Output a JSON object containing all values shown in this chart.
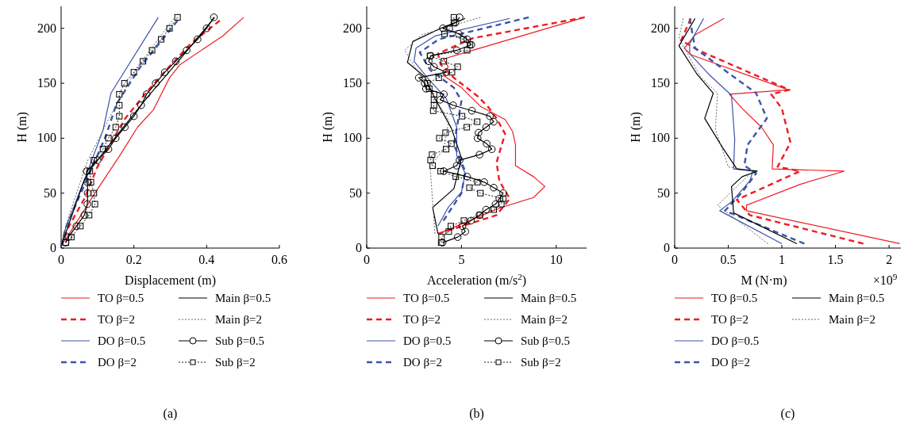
{
  "chart_data": [
    {
      "type": "line",
      "xlabel": "Displacement (m)",
      "ylabel": "H (m)",
      "xlim": [
        0,
        0.6
      ],
      "xticks": [
        0,
        0.2,
        0.4,
        0.6
      ],
      "ylim": [
        0,
        220
      ],
      "yticks": [
        0,
        50,
        100,
        150,
        200
      ],
      "legend": "bottom",
      "annotations": [
        "(a)"
      ],
      "series": [
        {
          "name": "TO β=0.5",
          "color": "#ee1c25",
          "line_style": "solid",
          "marker": "none",
          "x": [
            0,
            0.028,
            0.093,
            0.159,
            0.21,
            0.254,
            0.298,
            0.327,
            0.444,
            0.502
          ],
          "values": [
            2,
            16,
            50,
            83,
            110,
            126,
            155,
            167,
            193,
            210
          ]
        },
        {
          "name": "TO β=2",
          "color": "#ee1c25",
          "line_style": "dashed",
          "marker": "none",
          "x": [
            0,
            0.02,
            0.064,
            0.1,
            0.174,
            0.225,
            0.283,
            0.356,
            0.436
          ],
          "values": [
            2,
            19,
            45,
            74,
            117,
            138,
            160,
            186,
            207
          ]
        },
        {
          "name": "DO β=0.5",
          "color": "#3b55a8",
          "line_style": "solid",
          "marker": "none",
          "x": [
            0,
            0.013,
            0.072,
            0.115,
            0.137,
            0.267
          ],
          "values": [
            2,
            19,
            69,
            107,
            141,
            210
          ]
        },
        {
          "name": "DO β=2",
          "color": "#3b55a8",
          "line_style": "dashed",
          "marker": "none",
          "x": [
            0,
            0.013,
            0.086,
            0.123,
            0.152,
            0.218,
            0.32
          ],
          "values": [
            2,
            19,
            74,
            102,
            131,
            165,
            207
          ]
        },
        {
          "name": "Main β=0.5",
          "color": "#000000",
          "line_style": "solid",
          "marker": "none",
          "x": [
            0,
            0.01,
            0.035,
            0.064,
            0.086,
            0.159,
            0.239,
            0.327,
            0.422
          ],
          "values": [
            2,
            11,
            35,
            62,
            74,
            105,
            138,
            172,
            210
          ]
        },
        {
          "name": "Main β=2",
          "color": "#555555",
          "line_style": "dotted",
          "marker": "none",
          "x": [
            0,
            0.02,
            0.072,
            0.13,
            0.21,
            0.31
          ],
          "values": [
            2,
            28,
            79,
            117,
            165,
            209
          ]
        },
        {
          "name": "Sub β=0.5",
          "color": "#000000",
          "line_style": "solid",
          "marker": "circle",
          "x": [
            0.012,
            0.02,
            0.042,
            0.064,
            0.072,
            0.073,
            0.072,
            0.07,
            0.1,
            0.13,
            0.15,
            0.175,
            0.2,
            0.22,
            0.235,
            0.26,
            0.285,
            0.315,
            0.345,
            0.375,
            0.4,
            0.42
          ],
          "values": [
            5,
            10,
            20,
            30,
            40,
            50,
            60,
            70,
            80,
            90,
            100,
            110,
            120,
            130,
            140,
            150,
            160,
            170,
            180,
            190,
            200,
            210
          ]
        },
        {
          "name": "Sub β=2",
          "color": "#000000",
          "line_style": "dotted",
          "marker": "square",
          "x": [
            0.013,
            0.028,
            0.053,
            0.077,
            0.093,
            0.09,
            0.082,
            0.079,
            0.09,
            0.115,
            0.13,
            0.15,
            0.16,
            0.16,
            0.16,
            0.174,
            0.2,
            0.225,
            0.25,
            0.275,
            0.298,
            0.32
          ],
          "values": [
            5,
            10,
            20,
            30,
            40,
            50,
            60,
            70,
            80,
            90,
            100,
            110,
            120,
            130,
            140,
            150,
            160,
            170,
            180,
            190,
            200,
            210
          ]
        }
      ]
    },
    {
      "type": "line",
      "xlabel": "Acceleration (m/s$^{2}$)",
      "ylabel": "H (m)",
      "xlim": [
        0,
        11.6
      ],
      "xticks": [
        0,
        5,
        10
      ],
      "ylim": [
        0,
        220
      ],
      "yticks": [
        0,
        50,
        100,
        150,
        200
      ],
      "legend": "bottom",
      "annotations": [
        "(b)"
      ],
      "series": [
        {
          "name": "TO β=0.5",
          "color": "#ee1c25",
          "line_style": "solid",
          "marker": "none",
          "x": [
            3.9,
            7.1,
            8.8,
            9.4,
            8.8,
            7.85,
            7.85,
            7.7,
            7.3,
            6.0,
            5.0,
            4.05,
            4.3,
            4.05,
            5.0,
            11.5
          ],
          "values": [
            14,
            37,
            46,
            56,
            65,
            75,
            94,
            106,
            117,
            129,
            146,
            157,
            165,
            172,
            177,
            210
          ]
        },
        {
          "name": "TO β=2",
          "color": "#ee1c25",
          "line_style": "dashed",
          "marker": "none",
          "x": [
            3.76,
            6.85,
            7.55,
            7.0,
            6.85,
            7.3,
            6.85,
            6.43,
            5.87,
            4.6,
            3.9,
            3.76,
            5.6,
            11.5
          ],
          "values": [
            13,
            30,
            45,
            61,
            78,
            104,
            118,
            128,
            138,
            155,
            167,
            177,
            191,
            210
          ]
        },
        {
          "name": "DO β=0.5",
          "color": "#3b55a8",
          "line_style": "solid",
          "marker": "none",
          "x": [
            3.76,
            4.3,
            5.0,
            5.2,
            4.75,
            4.75,
            4.2,
            3.2,
            2.5,
            2.6,
            3.6,
            7.55
          ],
          "values": [
            20,
            37,
            51,
            68,
            84,
            110,
            136,
            155,
            170,
            182,
            193,
            209
          ]
        },
        {
          "name": "DO β=2",
          "color": "#3b55a8",
          "line_style": "dashed",
          "marker": "none",
          "x": [
            4.05,
            5.0,
            5.2,
            4.6,
            5.0,
            4.6,
            3.35,
            2.8,
            3.8,
            8.55
          ],
          "values": [
            25,
            50,
            70,
            94,
            134,
            146,
            162,
            178,
            190,
            210
          ]
        },
        {
          "name": "Main β=0.5",
          "color": "#000000",
          "line_style": "solid",
          "marker": "none",
          "x": [
            3.76,
            3.48,
            4.6,
            5.0,
            4.47,
            3.6,
            3.06,
            2.15,
            2.43,
            3.9,
            5.2
          ],
          "values": [
            13,
            37,
            54,
            82,
            109,
            136,
            156,
            169,
            188,
            200,
            209
          ]
        },
        {
          "name": "Main β=2",
          "color": "#555555",
          "line_style": "dotted",
          "marker": "none",
          "x": [
            3.6,
            3.48,
            3.34,
            4.05,
            4.33,
            3.48,
            2.64,
            2.0,
            2.9,
            6.0
          ],
          "values": [
            13,
            42,
            75,
            89,
            116,
            140,
            162,
            180,
            194,
            210
          ]
        },
        {
          "name": "Sub β=0.5",
          "color": "#000000",
          "line_style": "solid",
          "marker": "circle",
          "x": [
            4.0,
            4.8,
            5.2,
            5.05,
            5.5,
            5.95,
            6.3,
            6.8,
            7.0,
            7.2,
            6.7,
            6.2,
            5.3,
            4.07,
            4.75,
            4.9,
            5.95,
            6.6,
            6.33,
            5.85,
            5.9,
            6.3,
            6.7,
            6.5,
            5.55,
            4.56,
            3.88,
            4.07,
            3.13,
            3.06,
            2.75,
            4.2,
            3.55,
            3.27,
            3.38,
            4.75,
            5.52,
            5.3,
            4.86,
            4.02,
            4.68,
            4.9
          ],
          "values": [
            5,
            10,
            15,
            20,
            25,
            30,
            35,
            40,
            45,
            50,
            55,
            60,
            65,
            70,
            75,
            80,
            85,
            90,
            95,
            100,
            105,
            110,
            115,
            120,
            125,
            130,
            135,
            140,
            145,
            150,
            155,
            160,
            165,
            170,
            175,
            180,
            185,
            190,
            195,
            200,
            205,
            210
          ]
        },
        {
          "name": "Sub β=2",
          "color": "#000000",
          "line_style": "dotted",
          "marker": "square",
          "x": [
            3.93,
            3.95,
            4.33,
            4.44,
            5.13,
            5.97,
            6.7,
            7.1,
            7.2,
            6.0,
            5.42,
            5.84,
            4.7,
            3.9,
            3.48,
            3.37,
            3.45,
            4.19,
            4.47,
            3.83,
            4.16,
            5.28,
            5.83,
            5.03,
            3.51,
            3.55,
            3.55,
            3.55,
            3.3,
            3.2,
            3.8,
            4.5,
            4.8,
            4.07,
            3.34,
            5.3,
            5.45,
            5.1,
            4.1,
            4.38,
            4.6,
            4.6
          ],
          "values": [
            5,
            10,
            15,
            20,
            25,
            30,
            35,
            40,
            45,
            50,
            55,
            60,
            65,
            70,
            75,
            80,
            85,
            90,
            95,
            100,
            105,
            110,
            115,
            120,
            125,
            130,
            135,
            140,
            145,
            150,
            155,
            160,
            165,
            170,
            175,
            180,
            185,
            190,
            195,
            200,
            205,
            210
          ]
        }
      ]
    },
    {
      "type": "line",
      "xlabel": "M (N·m)",
      "ylabel": "H (m)",
      "xlim": [
        0,
        2.11
      ],
      "xticks": [
        0,
        0.5,
        1,
        1.5,
        2
      ],
      "ylim": [
        0,
        220
      ],
      "yticks": [
        0,
        50,
        100,
        150,
        200
      ],
      "legend": "bottom",
      "annotations": [
        "×10$^{9}$",
        "(c)"
      ],
      "series": [
        {
          "name": "TO β=0.5",
          "color": "#ee1c25",
          "line_style": "solid",
          "marker": "none",
          "x": [
            2.1,
            0.67,
            0.67,
            1.17,
            1.58,
            0.91,
            0.92,
            0.81,
            0.63,
            0.51,
            1.06,
            0.15,
            0.09,
            0.19,
            0.46
          ],
          "values": [
            4,
            34,
            39,
            58,
            70,
            72,
            94,
            110,
            127,
            140,
            144,
            176,
            182,
            194,
            209
          ]
        },
        {
          "name": "TO β=2",
          "color": "#ee1c25",
          "line_style": "dashed",
          "marker": "none",
          "x": [
            1.76,
            0.7,
            0.58,
            1.17,
            0.96,
            1.08,
            1.0,
            0.9,
            1.07,
            0.22,
            0.06,
            0.15
          ],
          "values": [
            4,
            30,
            44,
            70,
            74,
            96,
            127,
            140,
            144,
            180,
            189,
            209
          ]
        },
        {
          "name": "DO β=0.5",
          "color": "#3b55a8",
          "line_style": "solid",
          "marker": "none",
          "x": [
            1.0,
            0.42,
            0.53,
            0.7,
            0.73,
            0.55,
            0.56,
            0.53,
            0.32,
            0.14,
            0.14,
            0.27
          ],
          "values": [
            4,
            34,
            42,
            61,
            70,
            72,
            99,
            139,
            158,
            177,
            186,
            209
          ]
        },
        {
          "name": "DO β=2",
          "color": "#3b55a8",
          "line_style": "dashed",
          "marker": "none",
          "x": [
            1.21,
            0.47,
            0.63,
            0.76,
            0.65,
            0.68,
            0.86,
            0.76,
            0.45,
            0.19,
            0.14
          ],
          "values": [
            4,
            34,
            51,
            68,
            75,
            94,
            118,
            141,
            163,
            182,
            209
          ]
        },
        {
          "name": "Main β=0.5",
          "color": "#000000",
          "line_style": "solid",
          "marker": "none",
          "x": [
            1.14,
            0.55,
            0.53,
            0.63,
            0.77,
            0.58,
            0.45,
            0.28,
            0.36,
            0.21,
            0.04,
            0.19
          ],
          "values": [
            4,
            32,
            56,
            65,
            70,
            72,
            91,
            118,
            141,
            158,
            184,
            209
          ]
        },
        {
          "name": "Main β=2",
          "color": "#555555",
          "line_style": "dotted",
          "marker": "none",
          "x": [
            0.87,
            0.4,
            0.58,
            0.73,
            0.5,
            0.38,
            0.4,
            0.24,
            0.04,
            0.08
          ],
          "values": [
            4,
            39,
            56,
            70,
            74,
            108,
            141,
            156,
            191,
            209
          ]
        }
      ]
    }
  ]
}
